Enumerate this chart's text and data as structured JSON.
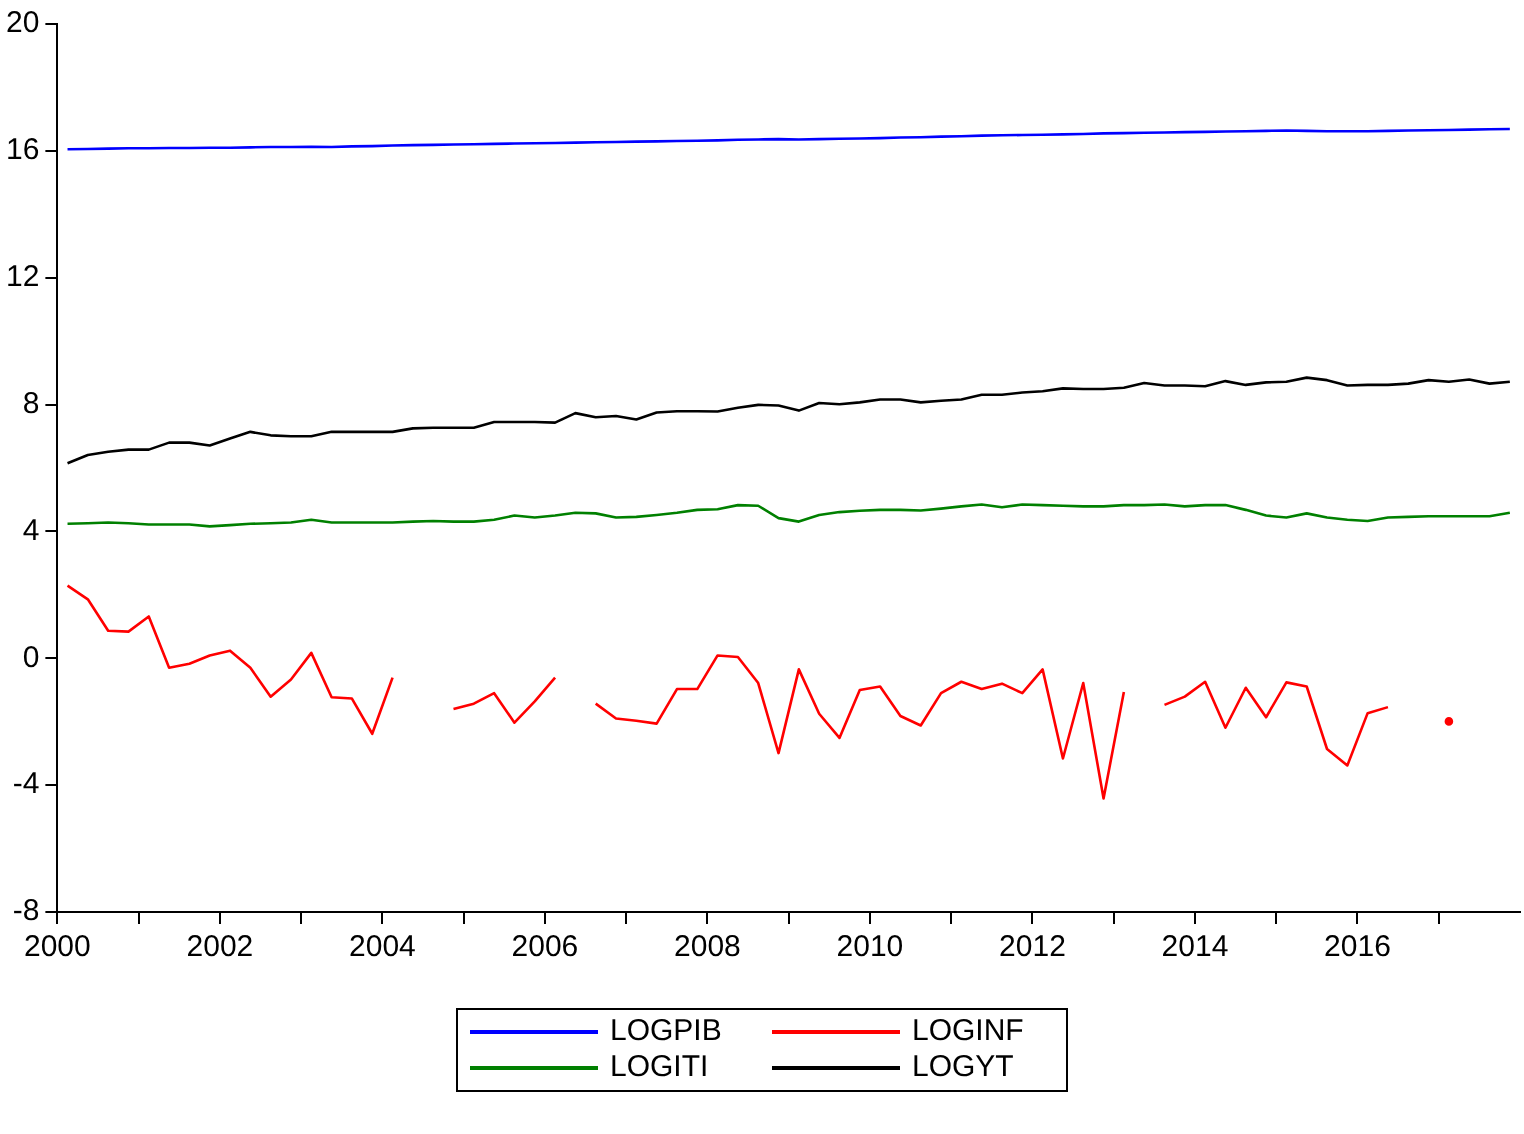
{
  "chart_data": {
    "type": "line",
    "legend": "bottom",
    "grid": false,
    "marker": "none",
    "line_style": "solid",
    "x": [
      2000.125,
      2000.375,
      2000.625,
      2000.875,
      2001.125,
      2001.375,
      2001.625,
      2001.875,
      2002.125,
      2002.375,
      2002.625,
      2002.875,
      2003.125,
      2003.375,
      2003.625,
      2003.875,
      2004.125,
      2004.375,
      2004.625,
      2004.875,
      2005.125,
      2005.375,
      2005.625,
      2005.875,
      2006.125,
      2006.375,
      2006.625,
      2006.875,
      2007.125,
      2007.375,
      2007.625,
      2007.875,
      2008.125,
      2008.375,
      2008.625,
      2008.875,
      2009.125,
      2009.375,
      2009.625,
      2009.875,
      2010.125,
      2010.375,
      2010.625,
      2010.875,
      2011.125,
      2011.375,
      2011.625,
      2011.875,
      2012.125,
      2012.375,
      2012.625,
      2012.875,
      2013.125,
      2013.375,
      2013.625,
      2013.875,
      2014.125,
      2014.375,
      2014.625,
      2014.875,
      2015.125,
      2015.375,
      2015.625,
      2015.875,
      2016.125,
      2016.375,
      2016.625,
      2016.875,
      2017.125,
      2017.375,
      2017.625,
      2017.875
    ],
    "xlim": [
      2000,
      2018
    ],
    "xticks": [
      2000,
      {
        "value": 2001,
        "label": null
      },
      2002,
      {
        "value": 2003,
        "label": null
      },
      2004,
      {
        "value": 2005,
        "label": null
      },
      2006,
      {
        "value": 2007,
        "label": null
      },
      2008,
      {
        "value": 2009,
        "label": null
      },
      2010,
      {
        "value": 2011,
        "label": null
      },
      2012,
      {
        "value": 2013,
        "label": null
      },
      2014,
      {
        "value": 2015,
        "label": null
      },
      2016,
      {
        "value": 2017,
        "label": null
      }
    ],
    "ylim": [
      -8,
      20
    ],
    "yticks": [
      -8,
      -4,
      0,
      4,
      8,
      12,
      16,
      20
    ],
    "series": [
      {
        "name": "LOGPIB",
        "color": "#0000ff",
        "values": [
          16.05,
          16.06,
          16.07,
          16.08,
          16.08,
          16.09,
          16.09,
          16.1,
          16.1,
          16.11,
          16.12,
          16.12,
          16.13,
          16.12,
          16.14,
          16.15,
          16.17,
          16.18,
          16.19,
          16.2,
          16.21,
          16.22,
          16.23,
          16.24,
          16.25,
          16.26,
          16.27,
          16.28,
          16.29,
          16.3,
          16.31,
          16.32,
          16.33,
          16.35,
          16.36,
          16.37,
          16.36,
          16.37,
          16.38,
          16.39,
          16.4,
          16.42,
          16.43,
          16.45,
          16.46,
          16.48,
          16.49,
          16.5,
          16.51,
          16.52,
          16.53,
          16.55,
          16.56,
          16.57,
          16.58,
          16.59,
          16.6,
          16.61,
          16.62,
          16.63,
          16.64,
          16.63,
          16.62,
          16.62,
          16.62,
          16.63,
          16.64,
          16.65,
          16.66,
          16.67,
          16.68,
          16.69
        ]
      },
      {
        "name": "LOGINF",
        "color": "#ff0000",
        "values": [
          2.29,
          1.86,
          0.87,
          0.84,
          1.32,
          -0.3,
          -0.17,
          0.09,
          0.24,
          -0.3,
          -1.21,
          -0.67,
          0.17,
          -1.23,
          -1.27,
          -2.38,
          -0.61,
          null,
          null,
          -1.6,
          -1.43,
          -1.1,
          -2.03,
          -1.36,
          -0.61,
          null,
          -1.43,
          -1.9,
          -1.97,
          -2.06,
          -0.97,
          -0.97,
          0.09,
          0.04,
          -0.78,
          -2.99,
          -0.35,
          -1.75,
          -2.51,
          -1.0,
          -0.89,
          -1.82,
          -2.12,
          -1.1,
          -0.74,
          -0.97,
          -0.8,
          -1.1,
          -0.35,
          -3.16,
          -0.78,
          -4.42,
          -1.06,
          null,
          -1.47,
          -1.21,
          -0.74,
          -2.19,
          -0.93,
          -1.86,
          -0.76,
          -0.89,
          -2.86,
          -3.38,
          -1.73,
          -1.54,
          null,
          null,
          -1.99,
          null,
          null,
          null
        ]
      },
      {
        "name": "LOGITI",
        "color": "#008000",
        "values": [
          4.24,
          4.26,
          4.28,
          4.26,
          4.22,
          4.22,
          4.22,
          4.16,
          4.2,
          4.24,
          4.26,
          4.28,
          4.37,
          4.28,
          4.28,
          4.28,
          4.28,
          4.31,
          4.33,
          4.31,
          4.31,
          4.37,
          4.5,
          4.44,
          4.5,
          4.59,
          4.57,
          4.44,
          4.46,
          4.52,
          4.59,
          4.68,
          4.7,
          4.83,
          4.81,
          4.42,
          4.31,
          4.52,
          4.61,
          4.65,
          4.68,
          4.68,
          4.66,
          4.72,
          4.79,
          4.85,
          4.76,
          4.85,
          4.83,
          4.81,
          4.79,
          4.79,
          4.83,
          4.83,
          4.85,
          4.79,
          4.83,
          4.83,
          4.68,
          4.5,
          4.44,
          4.57,
          4.44,
          4.37,
          4.33,
          4.44,
          4.46,
          4.48,
          4.48,
          4.48,
          4.48,
          4.59
        ]
      },
      {
        "name": "LOGYT",
        "color": "#000000",
        "values": [
          6.15,
          6.41,
          6.51,
          6.58,
          6.58,
          6.8,
          6.8,
          6.71,
          6.93,
          7.14,
          7.03,
          7.0,
          7.0,
          7.14,
          7.14,
          7.14,
          7.14,
          7.25,
          7.27,
          7.27,
          7.27,
          7.45,
          7.45,
          7.45,
          7.43,
          7.73,
          7.6,
          7.64,
          7.53,
          7.75,
          7.79,
          7.79,
          7.78,
          7.9,
          7.99,
          7.97,
          7.81,
          8.05,
          8.01,
          8.07,
          8.16,
          8.16,
          8.07,
          8.12,
          8.16,
          8.31,
          8.31,
          8.38,
          8.42,
          8.51,
          8.49,
          8.49,
          8.53,
          8.68,
          8.6,
          8.6,
          8.58,
          8.74,
          8.62,
          8.7,
          8.72,
          8.85,
          8.77,
          8.6,
          8.62,
          8.62,
          8.66,
          8.77,
          8.72,
          8.79,
          8.66,
          8.72
        ]
      }
    ]
  }
}
